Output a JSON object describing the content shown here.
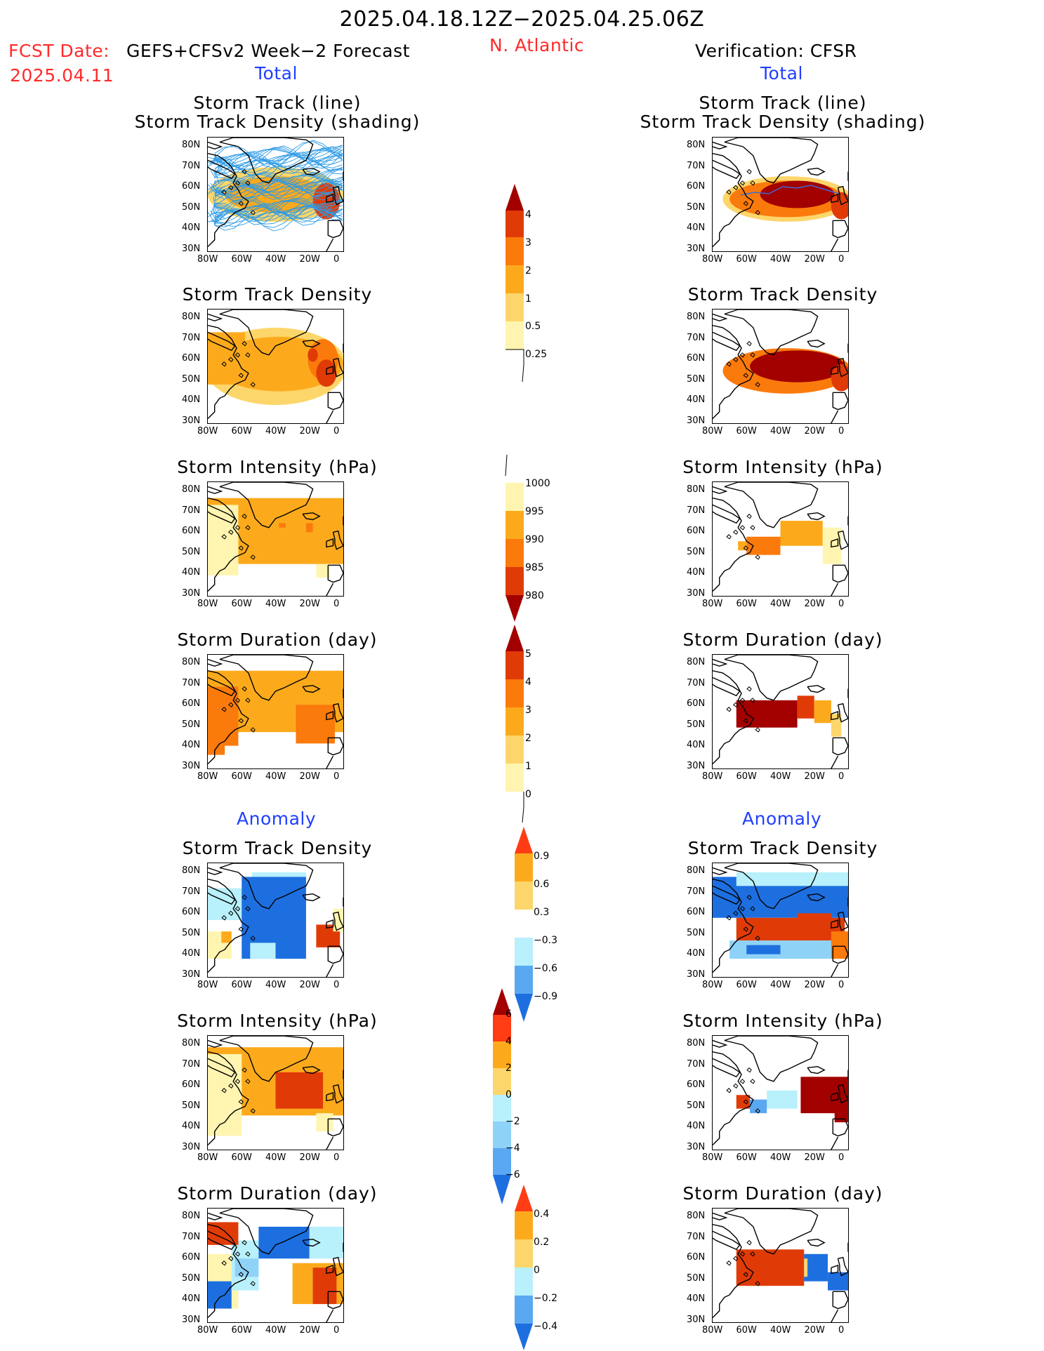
{
  "header": {
    "period": "2025.04.18.12Z−2025.04.25.06Z",
    "fcst_label": "FCST Date:",
    "fcst_model": "GEFS+CFSv2 Week−2 Forecast",
    "fcst_date": "2025.04.11",
    "region": "N. Atlantic",
    "verification": "Verification: CFSR"
  },
  "sections": {
    "total": "Total",
    "anomaly": "Anomaly"
  },
  "panel_titles": {
    "track_line": "Storm Track (line)",
    "track_shading": "Storm Track Density (shading)",
    "density": "Storm Track Density",
    "intensity": "Storm Intensity (hPa)",
    "duration": "Storm Duration (day)"
  },
  "axes": {
    "lat_ticks": [
      "80N",
      "70N",
      "60N",
      "50N",
      "40N",
      "30N"
    ],
    "lon_ticks": [
      "80W",
      "60W",
      "40W",
      "20W",
      "0"
    ]
  },
  "colorbars": {
    "density": [
      "4",
      "3",
      "2",
      "1",
      "0.5",
      "0.25"
    ],
    "intensity": [
      "1000",
      "995",
      "990",
      "985",
      "980"
    ],
    "duration": [
      "5",
      "4",
      "3",
      "2",
      "1",
      "0"
    ],
    "density_anom": [
      "0.9",
      "0.6",
      "0.3",
      "−0.3",
      "−0.6",
      "−0.9"
    ],
    "intensity_anom": [
      "6",
      "4",
      "2",
      "0",
      "−2",
      "−4",
      "−6"
    ],
    "duration_anom": [
      "0.4",
      "0.2",
      "0",
      "−0.2",
      "−0.4"
    ]
  },
  "colors": {
    "title_red": "#ff2a2a",
    "title_blue": "#1f3fff",
    "pos": [
      "#fff5b0",
      "#fdd66b",
      "#fcaa1c",
      "#fb7a0c",
      "#e03b07",
      "#a30000"
    ],
    "neg": [
      "#b8f0fb",
      "#8fd2f7",
      "#5aa8f2",
      "#1d6fe0",
      "#1550c8"
    ]
  },
  "chart_data": [
    {
      "type": "heatmap",
      "panel": "forecast-total-track",
      "title": "Storm Track (line) / Storm Track Density (shading)",
      "xlim": [
        "80W",
        "0"
      ],
      "ylim": [
        "30N",
        "80N"
      ]
    },
    {
      "type": "heatmap",
      "panel": "forecast-total-density",
      "title": "Storm Track Density",
      "xlim": [
        "80W",
        "0"
      ],
      "ylim": [
        "30N",
        "80N"
      ]
    },
    {
      "type": "heatmap",
      "panel": "forecast-total-intensity",
      "title": "Storm Intensity (hPa)",
      "xlim": [
        "80W",
        "0"
      ],
      "ylim": [
        "30N",
        "80N"
      ]
    },
    {
      "type": "heatmap",
      "panel": "forecast-total-duration",
      "title": "Storm Duration (day)",
      "xlim": [
        "80W",
        "0"
      ],
      "ylim": [
        "30N",
        "80N"
      ]
    },
    {
      "type": "heatmap",
      "panel": "forecast-anomaly-density",
      "title": "Storm Track Density",
      "xlim": [
        "80W",
        "0"
      ],
      "ylim": [
        "30N",
        "80N"
      ]
    },
    {
      "type": "heatmap",
      "panel": "forecast-anomaly-intensity",
      "title": "Storm Intensity (hPa)",
      "xlim": [
        "80W",
        "0"
      ],
      "ylim": [
        "30N",
        "80N"
      ]
    },
    {
      "type": "heatmap",
      "panel": "forecast-anomaly-duration",
      "title": "Storm Duration (day)",
      "xlim": [
        "80W",
        "0"
      ],
      "ylim": [
        "30N",
        "80N"
      ]
    },
    {
      "type": "heatmap",
      "panel": "verification-total-track",
      "title": "Storm Track (line) / Storm Track Density (shading)",
      "xlim": [
        "80W",
        "0"
      ],
      "ylim": [
        "30N",
        "80N"
      ]
    },
    {
      "type": "heatmap",
      "panel": "verification-total-density",
      "title": "Storm Track Density",
      "xlim": [
        "80W",
        "0"
      ],
      "ylim": [
        "30N",
        "80N"
      ]
    },
    {
      "type": "heatmap",
      "panel": "verification-total-intensity",
      "title": "Storm Intensity (hPa)",
      "xlim": [
        "80W",
        "0"
      ],
      "ylim": [
        "30N",
        "80N"
      ]
    },
    {
      "type": "heatmap",
      "panel": "verification-total-duration",
      "title": "Storm Duration (day)",
      "xlim": [
        "80W",
        "0"
      ],
      "ylim": [
        "30N",
        "80N"
      ]
    },
    {
      "type": "heatmap",
      "panel": "verification-anomaly-density",
      "title": "Storm Track Density",
      "xlim": [
        "80W",
        "0"
      ],
      "ylim": [
        "30N",
        "80N"
      ]
    },
    {
      "type": "heatmap",
      "panel": "verification-anomaly-intensity",
      "title": "Storm Intensity (hPa)",
      "xlim": [
        "80W",
        "0"
      ],
      "ylim": [
        "30N",
        "80N"
      ]
    },
    {
      "type": "heatmap",
      "panel": "verification-anomaly-duration",
      "title": "Storm Duration (day)",
      "xlim": [
        "80W",
        "0"
      ],
      "ylim": [
        "30N",
        "80N"
      ]
    }
  ]
}
